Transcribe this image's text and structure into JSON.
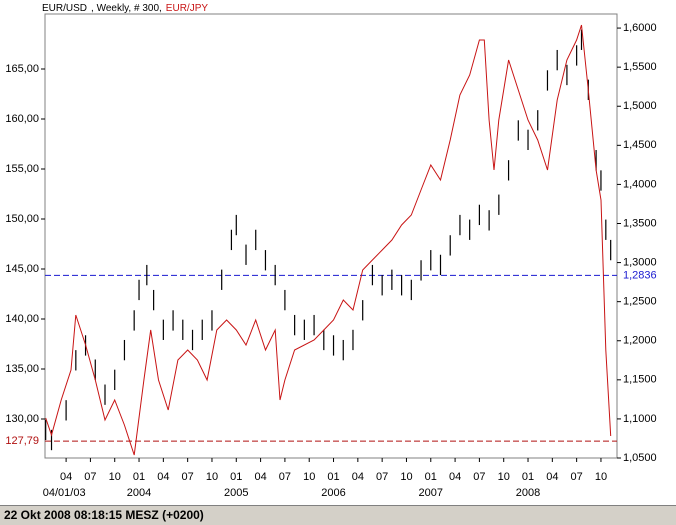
{
  "chart_data": {
    "type": "ohlc-line",
    "subtitle": ", Weekly, # 300,",
    "xlim": [
      2003.033,
      2008.915
    ],
    "xticks": [
      {
        "value": 2003.25,
        "label": "04"
      },
      {
        "value": 2003.5,
        "label": "07"
      },
      {
        "value": 2003.75,
        "label": "10"
      },
      {
        "value": 2004.0,
        "label": "01"
      },
      {
        "value": 2004.25,
        "label": "04"
      },
      {
        "value": 2004.5,
        "label": "07"
      },
      {
        "value": 2004.75,
        "label": "10"
      },
      {
        "value": 2005.0,
        "label": "01"
      },
      {
        "value": 2005.25,
        "label": "04"
      },
      {
        "value": 2005.5,
        "label": "07"
      },
      {
        "value": 2005.75,
        "label": "10"
      },
      {
        "value": 2006.0,
        "label": "01"
      },
      {
        "value": 2006.25,
        "label": "04"
      },
      {
        "value": 2006.5,
        "label": "07"
      },
      {
        "value": 2006.75,
        "label": "10"
      },
      {
        "value": 2007.0,
        "label": "01"
      },
      {
        "value": 2007.25,
        "label": "04"
      },
      {
        "value": 2007.5,
        "label": "07"
      },
      {
        "value": 2007.75,
        "label": "10"
      },
      {
        "value": 2008.0,
        "label": "01"
      },
      {
        "value": 2008.25,
        "label": "04"
      },
      {
        "value": 2008.5,
        "label": "07"
      },
      {
        "value": 2008.75,
        "label": "10"
      }
    ],
    "x_period_labels": [
      {
        "value": 2003.01,
        "label": "04/01/03"
      },
      {
        "value": 2004.0,
        "label": "2004"
      },
      {
        "value": 2005.0,
        "label": "2005"
      },
      {
        "value": 2006.0,
        "label": "2006"
      },
      {
        "value": 2007.0,
        "label": "2007"
      },
      {
        "value": 2008.0,
        "label": "2008"
      }
    ],
    "ylim": [
      126.1,
      170.5
    ],
    "yticks": [
      {
        "value": 130,
        "label": "130,00"
      },
      {
        "value": 135,
        "label": "135,00"
      },
      {
        "value": 140,
        "label": "140,00"
      },
      {
        "value": 145,
        "label": "145,00"
      },
      {
        "value": 150,
        "label": "150,00"
      },
      {
        "value": 155,
        "label": "155,00"
      },
      {
        "value": 160,
        "label": "160,00"
      },
      {
        "value": 165,
        "label": "165,00"
      }
    ],
    "y2lim": [
      1.05,
      1.618
    ],
    "y2ticks": [
      {
        "value": 1.05,
        "label": "1,0500"
      },
      {
        "value": 1.1,
        "label": "1,1000"
      },
      {
        "value": 1.15,
        "label": "1,1500"
      },
      {
        "value": 1.2,
        "label": "1,2000"
      },
      {
        "value": 1.25,
        "label": "1,2500"
      },
      {
        "value": 1.3,
        "label": "1,3000"
      },
      {
        "value": 1.35,
        "label": "1,3500"
      },
      {
        "value": 1.4,
        "label": "1,4000"
      },
      {
        "value": 1.45,
        "label": "1,4500"
      },
      {
        "value": 1.5,
        "label": "1,5000"
      },
      {
        "value": 1.55,
        "label": "1,5500"
      },
      {
        "value": 1.6,
        "label": "1,6000"
      }
    ],
    "hlines": [
      {
        "value": 1.2836,
        "label": "1,2836",
        "axis": "y2",
        "color": "#1a1ad0"
      },
      {
        "value": 127.79,
        "label": "127,79",
        "axis": "y",
        "color": "#b01010"
      }
    ],
    "series": [
      {
        "name": "EUR/USD",
        "color": "#000000",
        "axis": "y2",
        "x": [
          2003.04,
          2003.1,
          2003.25,
          2003.35,
          2003.45,
          2003.55,
          2003.65,
          2003.75,
          2003.85,
          2003.95,
          2004.0,
          2004.08,
          2004.15,
          2004.25,
          2004.35,
          2004.45,
          2004.55,
          2004.65,
          2004.75,
          2004.85,
          2004.95,
          2005.0,
          2005.1,
          2005.2,
          2005.3,
          2005.4,
          2005.5,
          2005.6,
          2005.7,
          2005.8,
          2005.9,
          2006.0,
          2006.1,
          2006.2,
          2006.3,
          2006.4,
          2006.5,
          2006.6,
          2006.7,
          2006.8,
          2006.9,
          2007.0,
          2007.1,
          2007.2,
          2007.3,
          2007.4,
          2007.5,
          2007.6,
          2007.7,
          2007.8,
          2007.9,
          2008.0,
          2008.1,
          2008.2,
          2008.3,
          2008.4,
          2008.5,
          2008.55,
          2008.62,
          2008.7,
          2008.75,
          2008.8,
          2008.85
        ],
        "high": [
          1.099,
          1.086,
          1.124,
          1.188,
          1.207,
          1.176,
          1.144,
          1.163,
          1.201,
          1.239,
          1.278,
          1.297,
          1.265,
          1.227,
          1.239,
          1.227,
          1.214,
          1.227,
          1.239,
          1.291,
          1.342,
          1.361,
          1.323,
          1.342,
          1.316,
          1.297,
          1.265,
          1.233,
          1.227,
          1.233,
          1.214,
          1.207,
          1.201,
          1.214,
          1.252,
          1.297,
          1.284,
          1.291,
          1.284,
          1.278,
          1.303,
          1.316,
          1.31,
          1.335,
          1.361,
          1.355,
          1.374,
          1.367,
          1.387,
          1.431,
          1.482,
          1.47,
          1.495,
          1.546,
          1.572,
          1.553,
          1.578,
          1.598,
          1.534,
          1.444,
          1.418,
          1.355,
          1.329
        ],
        "low": [
          1.073,
          1.06,
          1.098,
          1.162,
          1.181,
          1.15,
          1.118,
          1.137,
          1.175,
          1.213,
          1.252,
          1.271,
          1.239,
          1.201,
          1.213,
          1.201,
          1.188,
          1.201,
          1.213,
          1.265,
          1.316,
          1.335,
          1.297,
          1.316,
          1.29,
          1.271,
          1.239,
          1.207,
          1.201,
          1.207,
          1.188,
          1.181,
          1.175,
          1.188,
          1.226,
          1.271,
          1.258,
          1.265,
          1.258,
          1.252,
          1.277,
          1.29,
          1.284,
          1.309,
          1.335,
          1.329,
          1.348,
          1.341,
          1.361,
          1.405,
          1.456,
          1.444,
          1.469,
          1.52,
          1.546,
          1.527,
          1.552,
          1.572,
          1.508,
          1.418,
          1.392,
          1.329,
          1.303
        ]
      },
      {
        "name": "EUR/JPY",
        "color": "#c81414",
        "axis": "y",
        "x": [
          2003.04,
          2003.1,
          2003.2,
          2003.3,
          2003.35,
          2003.45,
          2003.55,
          2003.65,
          2003.75,
          2003.85,
          2003.95,
          2004.05,
          2004.12,
          2004.2,
          2004.3,
          2004.4,
          2004.5,
          2004.6,
          2004.7,
          2004.8,
          2004.9,
          2005.0,
          2005.1,
          2005.2,
          2005.3,
          2005.4,
          2005.45,
          2005.5,
          2005.6,
          2005.8,
          2005.9,
          2006.0,
          2006.1,
          2006.2,
          2006.3,
          2006.4,
          2006.5,
          2006.6,
          2006.7,
          2006.8,
          2006.9,
          2007.0,
          2007.1,
          2007.2,
          2007.3,
          2007.4,
          2007.5,
          2007.55,
          2007.6,
          2007.65,
          2007.7,
          2007.8,
          2007.9,
          2008.0,
          2008.1,
          2008.2,
          2008.3,
          2008.4,
          2008.5,
          2008.55,
          2008.62,
          2008.7,
          2008.75,
          2008.8,
          2008.85
        ],
        "values": [
          130.1,
          128.4,
          131.9,
          134.9,
          140.4,
          137.4,
          133.9,
          129.9,
          131.9,
          129.4,
          126.4,
          133.9,
          138.9,
          133.9,
          130.9,
          135.9,
          136.9,
          135.9,
          133.9,
          138.9,
          139.9,
          138.9,
          137.4,
          139.9,
          136.9,
          138.9,
          131.9,
          133.9,
          136.9,
          137.9,
          138.9,
          139.9,
          141.9,
          140.9,
          144.9,
          145.9,
          146.9,
          147.9,
          149.4,
          150.4,
          152.9,
          155.4,
          153.9,
          157.9,
          162.4,
          164.4,
          167.9,
          167.9,
          159.9,
          154.9,
          159.9,
          165.9,
          162.9,
          159.9,
          157.9,
          154.9,
          161.9,
          165.9,
          167.9,
          169.4,
          162.9,
          154.9,
          151.9,
          136.9,
          128.3
        ]
      }
    ]
  },
  "status_bar": "22 Okt 2008 08:18:15  MESZ (+0200)"
}
